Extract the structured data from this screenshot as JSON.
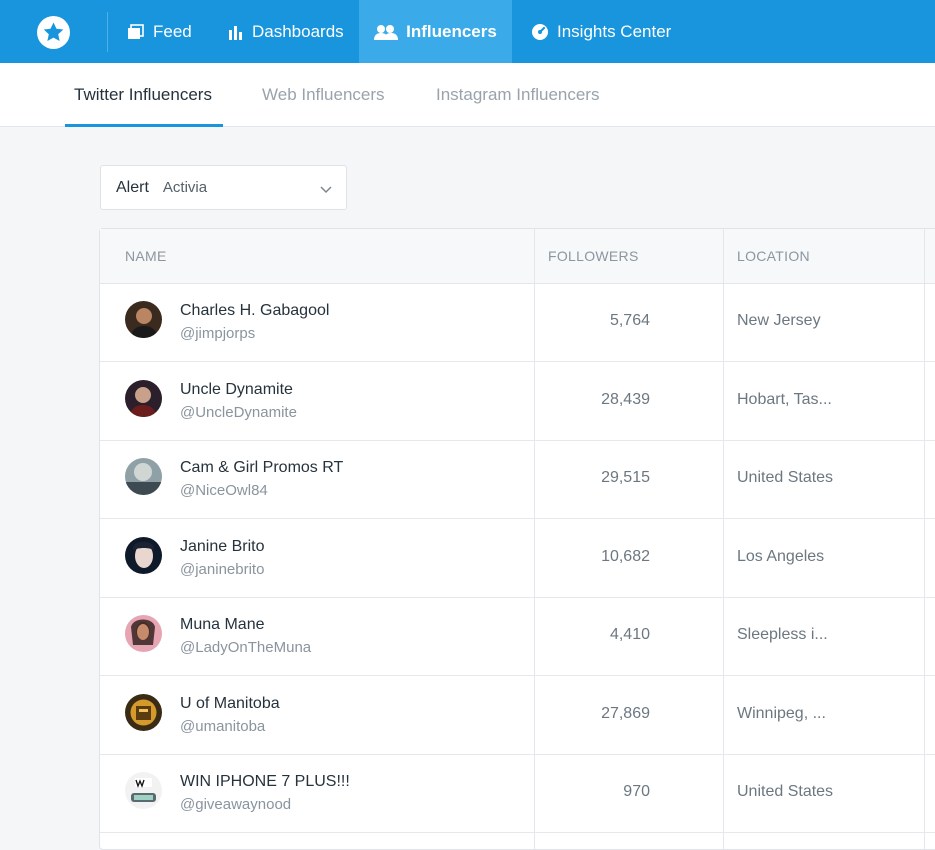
{
  "nav": {
    "items": [
      {
        "label": "Feed",
        "icon": "feed-icon"
      },
      {
        "label": "Dashboards",
        "icon": "bar-chart-icon"
      },
      {
        "label": "Influencers",
        "icon": "users-icon",
        "active": true
      },
      {
        "label": "Insights Center",
        "icon": "gauge-icon"
      }
    ],
    "accent": "#1895dd",
    "active_bg": "#3aaae9"
  },
  "subtabs": [
    {
      "label": "Twitter Influencers",
      "active": true
    },
    {
      "label": "Web Influencers"
    },
    {
      "label": "Instagram Influencers"
    }
  ],
  "alert": {
    "label": "Alert",
    "value": "Activia"
  },
  "table": {
    "columns": [
      "NAME",
      "FOLLOWERS",
      "LOCATION"
    ],
    "rows": [
      {
        "name": "Charles H. Gabagool",
        "handle": "@jimpjorps",
        "followers": "5,764",
        "location": "New Jersey"
      },
      {
        "name": "Uncle Dynamite",
        "handle": "@UncleDynamite",
        "followers": "28,439",
        "location": "Hobart, Tas..."
      },
      {
        "name": "Cam & Girl Promos RT",
        "handle": "@NiceOwl84",
        "followers": "29,515",
        "location": "United States"
      },
      {
        "name": "Janine Brito",
        "handle": "@janinebrito",
        "followers": "10,682",
        "location": "Los Angeles"
      },
      {
        "name": "Muna Mane",
        "handle": "@LadyOnTheMuna",
        "followers": "4,410",
        "location": "Sleepless i..."
      },
      {
        "name": "U of Manitoba",
        "handle": "@umanitoba",
        "followers": "27,869",
        "location": "Winnipeg, ..."
      },
      {
        "name": "WIN IPHONE 7 PLUS!!!",
        "handle": "@giveawaynood",
        "followers": "970",
        "location": "United States"
      }
    ]
  }
}
